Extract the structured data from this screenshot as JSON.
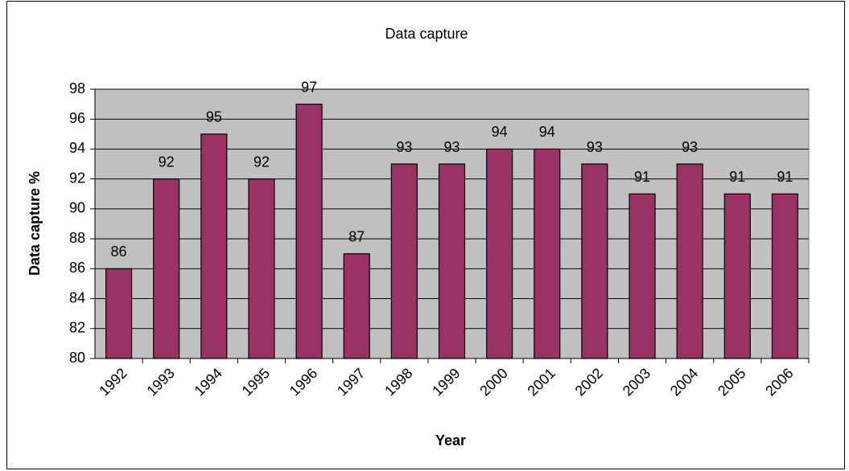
{
  "chart_data": {
    "type": "bar",
    "title": "Data capture",
    "x_label": "Year",
    "y_label": "Data capture %",
    "categories": [
      "1992",
      "1993",
      "1994",
      "1995",
      "1996",
      "1997",
      "1998",
      "1999",
      "2000",
      "2001",
      "2002",
      "2003",
      "2004",
      "2005",
      "2006"
    ],
    "values": [
      86,
      92,
      95,
      92,
      97,
      87,
      93,
      93,
      94,
      94,
      93,
      91,
      93,
      91,
      91
    ],
    "color": "#993366",
    "plot_background": "#c0c0c0",
    "ylim": [
      80,
      98
    ],
    "yticks": [
      80,
      82,
      84,
      86,
      88,
      90,
      92,
      94,
      96,
      98
    ],
    "grid": true
  }
}
